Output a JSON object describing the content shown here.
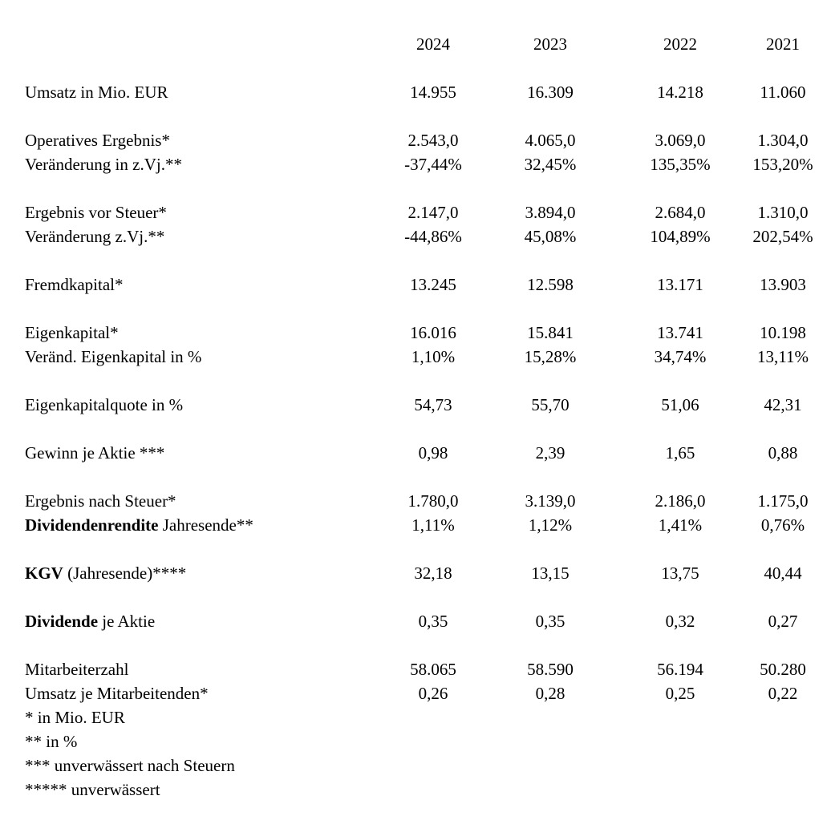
{
  "table": {
    "years": [
      "2024",
      "2023",
      "2022",
      "2021"
    ],
    "rows": [
      {
        "label_bold": "",
        "label_rest": "Umsatz in Mio. EUR",
        "values": [
          "14.955",
          "16.309",
          "14.218",
          "11.060"
        ]
      },
      {
        "label_bold": "",
        "label_rest": "Operatives Ergebnis*",
        "values": [
          "2.543,0",
          "4.065,0",
          "3.069,0",
          "1.304,0"
        ]
      },
      {
        "label_bold": "",
        "label_rest": "Veränderung in z.Vj.**",
        "values": [
          "-37,44%",
          "32,45%",
          "135,35%",
          "153,20%"
        ]
      },
      {
        "label_bold": "",
        "label_rest": "Ergebnis vor Steuer*",
        "values": [
          "2.147,0",
          "3.894,0",
          "2.684,0",
          "1.310,0"
        ]
      },
      {
        "label_bold": "",
        "label_rest": "Veränderung z.Vj.**",
        "values": [
          "-44,86%",
          "45,08%",
          "104,89%",
          "202,54%"
        ]
      },
      {
        "label_bold": "",
        "label_rest": "Fremdkapital*",
        "values": [
          "13.245",
          "12.598",
          "13.171",
          "13.903"
        ]
      },
      {
        "label_bold": "",
        "label_rest": "Eigenkapital*",
        "values": [
          "16.016",
          "15.841",
          "13.741",
          "10.198"
        ]
      },
      {
        "label_bold": "",
        "label_rest": "Veränd. Eigenkapital in %",
        "values": [
          "1,10%",
          "15,28%",
          "34,74%",
          "13,11%"
        ]
      },
      {
        "label_bold": "",
        "label_rest": "Eigenkapitalquote in %",
        "values": [
          "54,73",
          "55,70",
          "51,06",
          "42,31"
        ]
      },
      {
        "label_bold": "",
        "label_rest": "Gewinn je Aktie ***",
        "values": [
          "0,98",
          "2,39",
          "1,65",
          "0,88"
        ]
      },
      {
        "label_bold": "",
        "label_rest": "Ergebnis nach Steuer*",
        "values": [
          "1.780,0",
          "3.139,0",
          "2.186,0",
          "1.175,0"
        ]
      },
      {
        "label_bold": "Dividendenrendite",
        "label_rest": " Jahresende**",
        "values": [
          "1,11%",
          "1,12%",
          "1,41%",
          "0,76%"
        ]
      },
      {
        "label_bold": "KGV",
        "label_rest": " (Jahresende)****",
        "values": [
          "32,18",
          "13,15",
          "13,75",
          "40,44"
        ]
      },
      {
        "label_bold": "Dividende",
        "label_rest": " je Aktie",
        "values": [
          "0,35",
          "0,35",
          "0,32",
          "0,27"
        ]
      },
      {
        "label_bold": "",
        "label_rest": "Mitarbeiterzahl",
        "values": [
          "58.065",
          "58.590",
          "56.194",
          "50.280"
        ]
      },
      {
        "label_bold": "",
        "label_rest": "Umsatz je Mitarbeitenden*",
        "values": [
          "0,26",
          "0,28",
          "0,25",
          "0,22"
        ]
      }
    ],
    "footnotes": [
      "* in Mio. EUR",
      "** in %",
      "*** unverwässert nach Steuern",
      "***** unverwässert"
    ]
  }
}
